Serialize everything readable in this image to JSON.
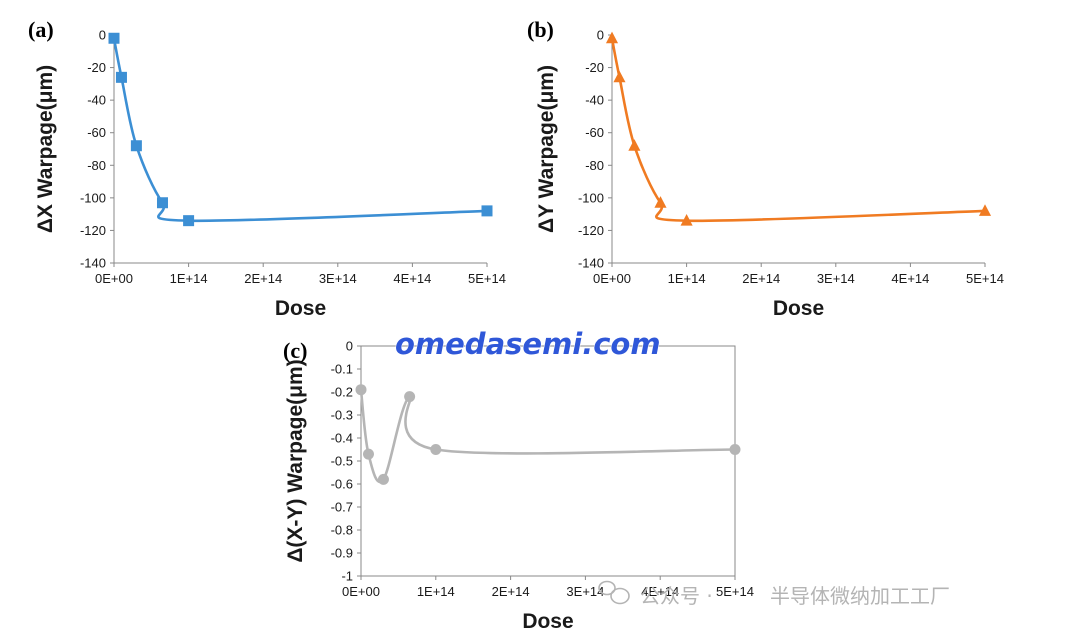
{
  "watermarks": {
    "site": "omedasemi.com",
    "channel_prefix": "公众号 ·",
    "channel_name": "半导体微纳加工工厂"
  },
  "chart_data": [
    {
      "panel": "(a)",
      "type": "line",
      "smooth": true,
      "markers": "square",
      "color": "#3c8fd4",
      "title": "",
      "xlabel": "Dose",
      "ylabel": "ΔX Warpage(μm)",
      "xlim": [
        0,
        500000000000000.0
      ],
      "ylim": [
        -140,
        0
      ],
      "xticks": [
        0,
        100000000000000.0,
        200000000000000.0,
        300000000000000.0,
        400000000000000.0,
        500000000000000.0
      ],
      "xtick_labels": [
        "0E+00",
        "1E+14",
        "2E+14",
        "3E+14",
        "4E+14",
        "5E+14"
      ],
      "yticks": [
        0,
        -20,
        -40,
        -60,
        -80,
        -100,
        -120,
        -140
      ],
      "ytick_labels": [
        "0",
        "-20",
        "-40",
        "-60",
        "-80",
        "-100",
        "-120",
        "-140"
      ],
      "grid": false,
      "x": [
        0,
        10000000000000.0,
        30000000000000.0,
        65000000000000.0,
        100000000000000.0,
        500000000000000.0
      ],
      "y": [
        -2,
        -26,
        -68,
        -103,
        -114,
        -108
      ]
    },
    {
      "panel": "(b)",
      "type": "line",
      "smooth": true,
      "markers": "triangle",
      "color": "#f07b22",
      "title": "",
      "xlabel": "Dose",
      "ylabel": "ΔY Warpage(μm)",
      "xlim": [
        0,
        500000000000000.0
      ],
      "ylim": [
        -140,
        0
      ],
      "xticks": [
        0,
        100000000000000.0,
        200000000000000.0,
        300000000000000.0,
        400000000000000.0,
        500000000000000.0
      ],
      "xtick_labels": [
        "0E+00",
        "1E+14",
        "2E+14",
        "3E+14",
        "4E+14",
        "5E+14"
      ],
      "yticks": [
        0,
        -20,
        -40,
        -60,
        -80,
        -100,
        -120,
        -140
      ],
      "ytick_labels": [
        "0",
        "-20",
        "-40",
        "-60",
        "-80",
        "-100",
        "-120",
        "-140"
      ],
      "grid": false,
      "x": [
        0,
        10000000000000.0,
        30000000000000.0,
        65000000000000.0,
        100000000000000.0,
        500000000000000.0
      ],
      "y": [
        -2,
        -26,
        -68,
        -103,
        -114,
        -108
      ]
    },
    {
      "panel": "(c)",
      "type": "line",
      "smooth": true,
      "markers": "circle",
      "color": "#b5b5b5",
      "title": "",
      "xlabel": "Dose",
      "ylabel": "Δ(X-Y) Warpage(μm)",
      "xlim": [
        0,
        500000000000000.0
      ],
      "ylim": [
        -1,
        0
      ],
      "xticks": [
        0,
        100000000000000.0,
        200000000000000.0,
        300000000000000.0,
        400000000000000.0,
        500000000000000.0
      ],
      "xtick_labels": [
        "0E+00",
        "1E+14",
        "2E+14",
        "3E+14",
        "4E+14",
        "5E+14"
      ],
      "yticks": [
        0,
        -0.1,
        -0.2,
        -0.3,
        -0.4,
        -0.5,
        -0.6,
        -0.7,
        -0.8,
        -0.9,
        -1
      ],
      "ytick_labels": [
        "0",
        "-0.1",
        "-0.2",
        "-0.3",
        "-0.4",
        "-0.5",
        "-0.6",
        "-0.7",
        "-0.8",
        "-0.9",
        "-1"
      ],
      "grid": false,
      "x": [
        0,
        10000000000000.0,
        30000000000000.0,
        65000000000000.0,
        100000000000000.0,
        500000000000000.0
      ],
      "y": [
        -0.19,
        -0.47,
        -0.58,
        -0.22,
        -0.45,
        -0.45
      ]
    }
  ]
}
